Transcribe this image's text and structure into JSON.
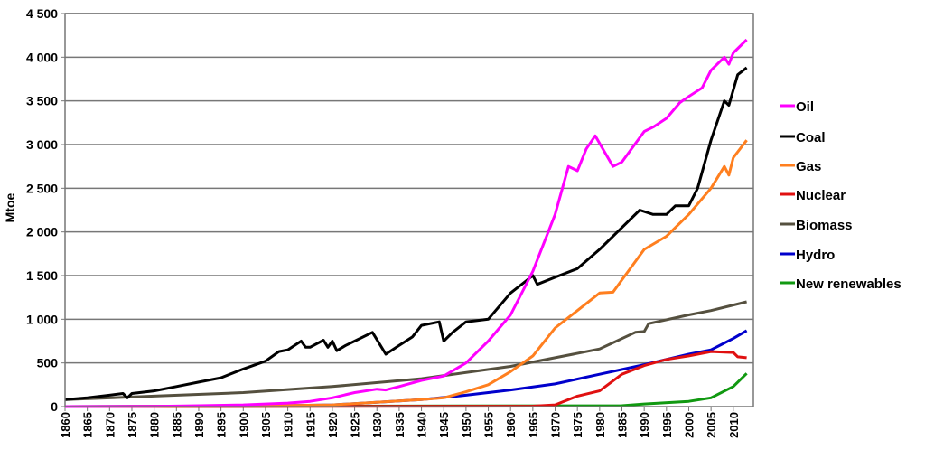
{
  "chart_data": {
    "type": "line",
    "title": "",
    "xlabel": "",
    "ylabel": "Mtoe",
    "xlim": [
      1860,
      2014.5
    ],
    "ylim": [
      0,
      4500
    ],
    "y_ticks": [
      0,
      500,
      1000,
      1500,
      2000,
      2500,
      3000,
      3500,
      4000,
      4500
    ],
    "y_tick_labels": [
      "0",
      "500",
      "1 000",
      "1 500",
      "2 000",
      "2 500",
      "3 000",
      "3 500",
      "4 000",
      "4 500"
    ],
    "x_tick_labels": [
      "1860",
      "1865",
      "1870",
      "1875",
      "1880",
      "1885",
      "1890",
      "1895",
      "1900",
      "1905",
      "1910",
      "1915",
      "1920",
      "1925",
      "1930",
      "1935",
      "1940",
      "1945",
      "1950",
      "1955",
      "1960",
      "1965",
      "1970",
      "1975",
      "1980",
      "1985",
      "1990",
      "1995",
      "2000",
      "2005",
      "2010"
    ],
    "grid": true,
    "legend_position": "right",
    "series": [
      {
        "name": "Oil",
        "color": "#ff00ff",
        "points": [
          [
            1860,
            0
          ],
          [
            1880,
            3
          ],
          [
            1890,
            10
          ],
          [
            1900,
            20
          ],
          [
            1910,
            40
          ],
          [
            1915,
            60
          ],
          [
            1920,
            100
          ],
          [
            1925,
            160
          ],
          [
            1930,
            200
          ],
          [
            1932,
            190
          ],
          [
            1935,
            230
          ],
          [
            1940,
            300
          ],
          [
            1945,
            350
          ],
          [
            1950,
            500
          ],
          [
            1955,
            750
          ],
          [
            1960,
            1050
          ],
          [
            1965,
            1550
          ],
          [
            1970,
            2200
          ],
          [
            1973,
            2750
          ],
          [
            1975,
            2700
          ],
          [
            1977,
            2950
          ],
          [
            1979,
            3100
          ],
          [
            1983,
            2750
          ],
          [
            1985,
            2800
          ],
          [
            1990,
            3150
          ],
          [
            1992,
            3200
          ],
          [
            1995,
            3300
          ],
          [
            1998,
            3480
          ],
          [
            2000,
            3550
          ],
          [
            2003,
            3650
          ],
          [
            2005,
            3850
          ],
          [
            2008,
            4000
          ],
          [
            2009,
            3920
          ],
          [
            2010,
            4050
          ],
          [
            2013,
            4200
          ]
        ]
      },
      {
        "name": "Coal",
        "color": "#000000",
        "points": [
          [
            1860,
            80
          ],
          [
            1865,
            100
          ],
          [
            1870,
            130
          ],
          [
            1873,
            150
          ],
          [
            1874,
            100
          ],
          [
            1875,
            150
          ],
          [
            1880,
            180
          ],
          [
            1885,
            230
          ],
          [
            1890,
            280
          ],
          [
            1895,
            330
          ],
          [
            1900,
            430
          ],
          [
            1905,
            520
          ],
          [
            1908,
            630
          ],
          [
            1910,
            650
          ],
          [
            1913,
            750
          ],
          [
            1914,
            680
          ],
          [
            1915,
            680
          ],
          [
            1918,
            760
          ],
          [
            1919,
            680
          ],
          [
            1920,
            750
          ],
          [
            1921,
            640
          ],
          [
            1923,
            700
          ],
          [
            1925,
            750
          ],
          [
            1929,
            850
          ],
          [
            1932,
            600
          ],
          [
            1935,
            700
          ],
          [
            1938,
            800
          ],
          [
            1940,
            930
          ],
          [
            1944,
            970
          ],
          [
            1945,
            750
          ],
          [
            1947,
            850
          ],
          [
            1950,
            970
          ],
          [
            1955,
            1000
          ],
          [
            1960,
            1300
          ],
          [
            1965,
            1500
          ],
          [
            1966,
            1400
          ],
          [
            1970,
            1480
          ],
          [
            1975,
            1580
          ],
          [
            1980,
            1800
          ],
          [
            1985,
            2050
          ],
          [
            1989,
            2250
          ],
          [
            1992,
            2200
          ],
          [
            1995,
            2200
          ],
          [
            1997,
            2300
          ],
          [
            2000,
            2300
          ],
          [
            2002,
            2500
          ],
          [
            2005,
            3050
          ],
          [
            2008,
            3500
          ],
          [
            2009,
            3450
          ],
          [
            2011,
            3800
          ],
          [
            2013,
            3880
          ]
        ]
      },
      {
        "name": "Gas",
        "color": "#ff7f1f",
        "points": [
          [
            1860,
            0
          ],
          [
            1900,
            5
          ],
          [
            1920,
            20
          ],
          [
            1940,
            80
          ],
          [
            1945,
            100
          ],
          [
            1950,
            170
          ],
          [
            1955,
            250
          ],
          [
            1960,
            400
          ],
          [
            1965,
            580
          ],
          [
            1970,
            900
          ],
          [
            1975,
            1100
          ],
          [
            1980,
            1300
          ],
          [
            1983,
            1310
          ],
          [
            1985,
            1450
          ],
          [
            1990,
            1800
          ],
          [
            1995,
            1950
          ],
          [
            2000,
            2200
          ],
          [
            2005,
            2500
          ],
          [
            2008,
            2750
          ],
          [
            2009,
            2650
          ],
          [
            2010,
            2850
          ],
          [
            2013,
            3050
          ]
        ]
      },
      {
        "name": "Nuclear",
        "color": "#e01010",
        "points": [
          [
            1860,
            0
          ],
          [
            1965,
            5
          ],
          [
            1970,
            20
          ],
          [
            1975,
            120
          ],
          [
            1980,
            180
          ],
          [
            1985,
            370
          ],
          [
            1990,
            470
          ],
          [
            1995,
            540
          ],
          [
            2000,
            580
          ],
          [
            2005,
            630
          ],
          [
            2010,
            620
          ],
          [
            2011,
            570
          ],
          [
            2013,
            560
          ]
        ]
      },
      {
        "name": "Biomass",
        "color": "#55503f",
        "points": [
          [
            1860,
            80
          ],
          [
            1880,
            120
          ],
          [
            1900,
            160
          ],
          [
            1920,
            230
          ],
          [
            1940,
            320
          ],
          [
            1960,
            460
          ],
          [
            1970,
            560
          ],
          [
            1980,
            660
          ],
          [
            1988,
            850
          ],
          [
            1990,
            860
          ],
          [
            1991,
            950
          ],
          [
            2000,
            1050
          ],
          [
            2005,
            1100
          ],
          [
            2013,
            1200
          ]
        ]
      },
      {
        "name": "Hydro",
        "color": "#0000cc",
        "points": [
          [
            1860,
            0
          ],
          [
            1900,
            5
          ],
          [
            1920,
            20
          ],
          [
            1930,
            50
          ],
          [
            1940,
            80
          ],
          [
            1950,
            130
          ],
          [
            1960,
            190
          ],
          [
            1970,
            260
          ],
          [
            1980,
            370
          ],
          [
            1990,
            480
          ],
          [
            2000,
            600
          ],
          [
            2005,
            650
          ],
          [
            2010,
            780
          ],
          [
            2013,
            870
          ]
        ]
      },
      {
        "name": "New renewables",
        "color": "#119911",
        "points": [
          [
            1860,
            0
          ],
          [
            1985,
            10
          ],
          [
            1990,
            30
          ],
          [
            2000,
            60
          ],
          [
            2005,
            100
          ],
          [
            2010,
            230
          ],
          [
            2013,
            380
          ]
        ]
      }
    ]
  }
}
